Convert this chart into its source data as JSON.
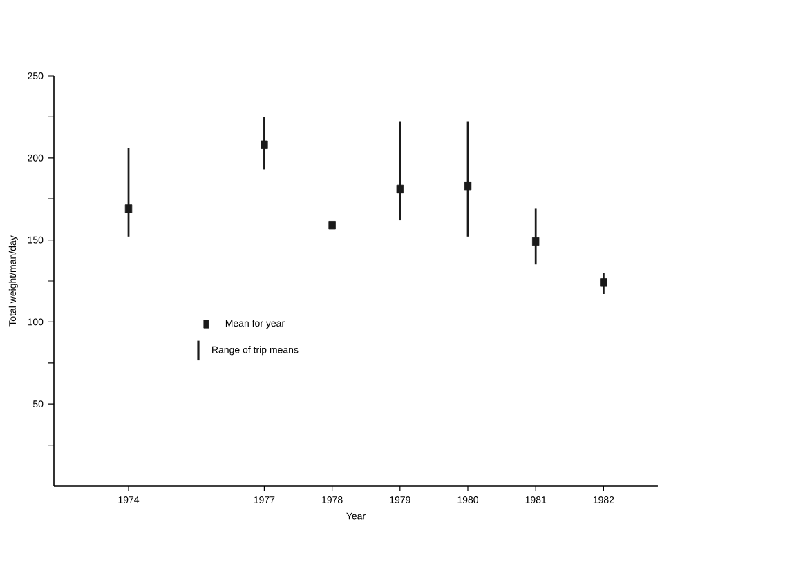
{
  "chart_data": {
    "type": "scatter",
    "xlabel": "Year",
    "ylabel": "Total weight/man/day",
    "categories": [
      "1974",
      null,
      "1977",
      "1978",
      "1979",
      "1980",
      "1981",
      "1982"
    ],
    "series": [
      {
        "name": "Range of trip means",
        "type": "bar",
        "color": "#1a1a1a",
        "base": [
          152,
          null,
          193,
          null,
          162,
          152,
          135,
          117
        ],
        "values": [
          54,
          null,
          32,
          null,
          60,
          70,
          34,
          13
        ]
      },
      {
        "name": "Mean for year",
        "color": "#1a1a1a",
        "marker": "square",
        "values": [
          169,
          null,
          208,
          159,
          181,
          183,
          149,
          124
        ]
      }
    ],
    "ylim": [
      0,
      250
    ],
    "yticks": [
      {
        "value": 25,
        "label": null
      },
      50,
      {
        "value": 75,
        "label": null
      },
      100,
      {
        "value": 125,
        "label": null
      },
      150,
      {
        "value": 175,
        "label": null
      },
      200,
      {
        "value": 225,
        "label": null
      },
      250
    ],
    "legend": "left",
    "grid": false
  }
}
